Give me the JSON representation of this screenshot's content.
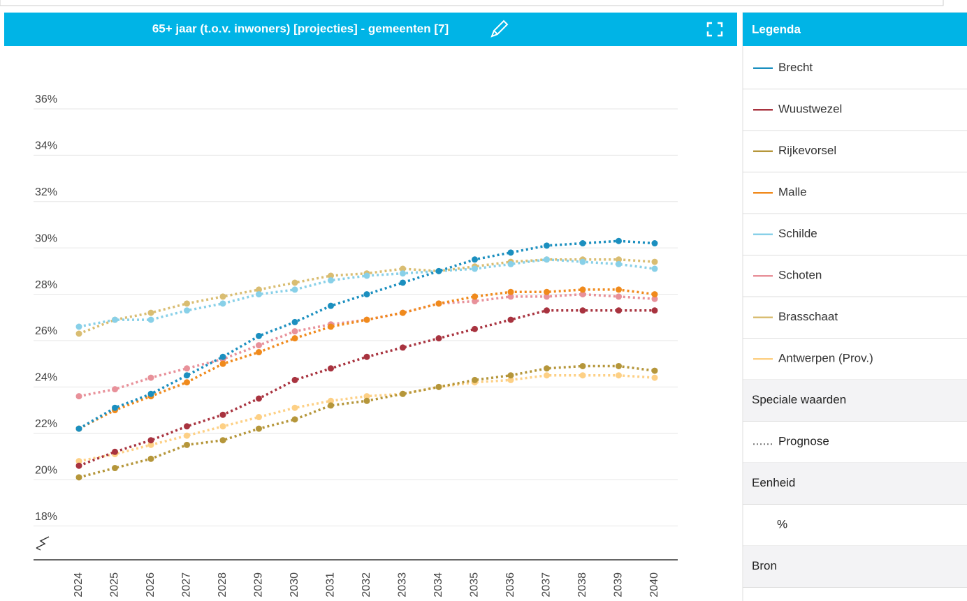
{
  "chart_data": {
    "type": "line",
    "title": "65+ jaar (t.o.v. inwoners) [projecties] - gemeenten [7]",
    "categories": [
      "2024",
      "2025",
      "2026",
      "2027",
      "2028",
      "2029",
      "2030",
      "2031",
      "2032",
      "2033",
      "2034",
      "2035",
      "2036",
      "2037",
      "2038",
      "2039",
      "2040"
    ],
    "series": [
      {
        "name": "Brecht",
        "color": "#1b8fbf",
        "values": [
          22.2,
          23.1,
          23.7,
          24.5,
          25.3,
          26.2,
          26.8,
          27.5,
          28.0,
          28.5,
          29.0,
          29.5,
          29.8,
          30.1,
          30.2,
          30.3,
          30.2
        ]
      },
      {
        "name": "Wuustwezel",
        "color": "#a8333f",
        "values": [
          20.6,
          21.2,
          21.7,
          22.3,
          22.8,
          23.5,
          24.3,
          24.8,
          25.3,
          25.7,
          26.1,
          26.5,
          26.9,
          27.3,
          27.3,
          27.3,
          27.3
        ]
      },
      {
        "name": "Rijkevorsel",
        "color": "#b5963a",
        "values": [
          20.1,
          20.5,
          20.9,
          21.5,
          21.7,
          22.2,
          22.6,
          23.2,
          23.4,
          23.7,
          24.0,
          24.3,
          24.5,
          24.8,
          24.9,
          24.9,
          24.7
        ]
      },
      {
        "name": "Malle",
        "color": "#f08a1c",
        "values": [
          22.2,
          23.0,
          23.6,
          24.2,
          25.0,
          25.5,
          26.1,
          26.6,
          26.9,
          27.2,
          27.6,
          27.9,
          28.1,
          28.1,
          28.2,
          28.2,
          28.0
        ]
      },
      {
        "name": "Schilde",
        "color": "#88d0e8",
        "values": [
          26.6,
          26.9,
          26.9,
          27.3,
          27.6,
          28.0,
          28.2,
          28.6,
          28.8,
          28.9,
          29.0,
          29.1,
          29.3,
          29.5,
          29.4,
          29.3,
          29.1
        ]
      },
      {
        "name": "Schoten",
        "color": "#e8919a",
        "values": [
          23.6,
          23.9,
          24.4,
          24.8,
          25.2,
          25.8,
          26.4,
          26.7,
          26.9,
          27.2,
          27.6,
          27.7,
          27.9,
          27.9,
          28.0,
          27.9,
          27.8
        ]
      },
      {
        "name": "Brasschaat",
        "color": "#d9bd72",
        "values": [
          26.3,
          26.9,
          27.2,
          27.6,
          27.9,
          28.2,
          28.5,
          28.8,
          28.9,
          29.1,
          29.0,
          29.2,
          29.4,
          29.5,
          29.5,
          29.5,
          29.4
        ]
      },
      {
        "name": "Antwerpen (Prov.)",
        "color": "#fdd085",
        "values": [
          20.8,
          21.1,
          21.5,
          21.9,
          22.3,
          22.7,
          23.1,
          23.4,
          23.6,
          23.7,
          24.0,
          24.2,
          24.3,
          24.5,
          24.5,
          24.5,
          24.4
        ]
      }
    ],
    "ylim": [
      16.54,
      38
    ],
    "yticks": [
      {
        "value": 18,
        "label": "18%"
      },
      {
        "value": 20,
        "label": "20%"
      },
      {
        "value": 22,
        "label": "22%"
      },
      {
        "value": 24,
        "label": "24%"
      },
      {
        "value": 26,
        "label": "26%"
      },
      {
        "value": 28,
        "label": "28%"
      },
      {
        "value": 30,
        "label": "30%"
      },
      {
        "value": 32,
        "label": "32%"
      },
      {
        "value": 34,
        "label": "34%"
      },
      {
        "value": 36,
        "label": "36%"
      }
    ],
    "grid": true
  },
  "legend_panel": {
    "title": "Legenda",
    "special_values_heading": "Speciale waarden",
    "forecast_label": "Prognose",
    "unit_heading": "Eenheid",
    "unit": "%",
    "source_heading": "Bron"
  }
}
